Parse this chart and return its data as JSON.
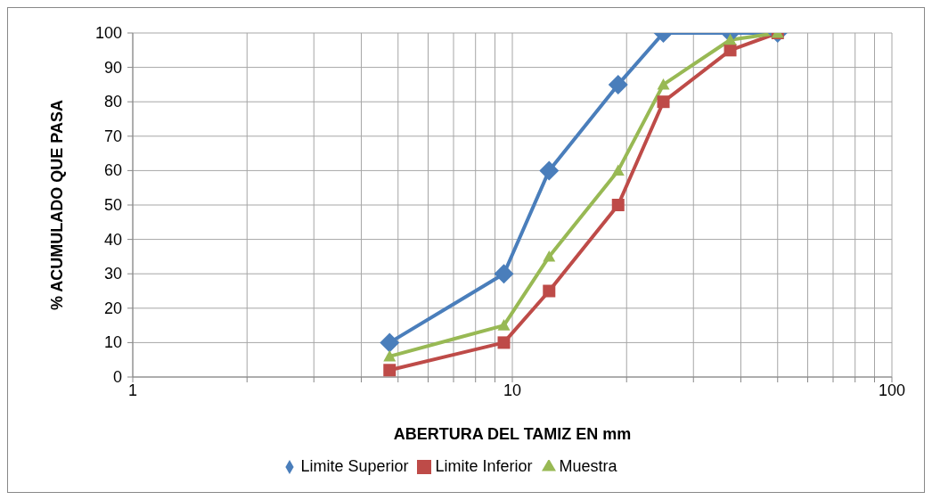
{
  "chart_data": {
    "type": "line",
    "xlabel": "ABERTURA DEL TAMIZ EN mm",
    "ylabel": "% ACUMULADO QUE PASA",
    "x": [
      4.75,
      9.5,
      12.5,
      19,
      25,
      37.5,
      50
    ],
    "series": [
      {
        "name": "Limite Superior",
        "color": "#4a7ebb",
        "marker": "diamond",
        "values": [
          10,
          30,
          60,
          85,
          100,
          100,
          100
        ]
      },
      {
        "name": "Limite Inferior",
        "color": "#be4b48",
        "marker": "square",
        "values": [
          2,
          10,
          25,
          50,
          80,
          95,
          100
        ]
      },
      {
        "name": "Muestra",
        "color": "#98b954",
        "marker": "triangle",
        "values": [
          6,
          15,
          35,
          60,
          85,
          98,
          100
        ]
      }
    ],
    "log": "x",
    "xlim": [
      1,
      100
    ],
    "xticks": [
      1,
      {
        "value": 2,
        "label": null
      },
      {
        "value": 3,
        "label": null
      },
      {
        "value": 4,
        "label": null
      },
      {
        "value": 5,
        "label": null
      },
      {
        "value": 6,
        "label": null
      },
      {
        "value": 7,
        "label": null
      },
      {
        "value": 8,
        "label": null
      },
      {
        "value": 9,
        "label": null
      },
      10,
      {
        "value": 20,
        "label": null
      },
      {
        "value": 30,
        "label": null
      },
      {
        "value": 40,
        "label": null
      },
      {
        "value": 50,
        "label": null
      },
      {
        "value": 60,
        "label": null
      },
      {
        "value": 70,
        "label": null
      },
      {
        "value": 80,
        "label": null
      },
      {
        "value": 90,
        "label": null
      },
      100
    ],
    "ylim": [
      0,
      100
    ],
    "yticks": [
      0,
      10,
      20,
      30,
      40,
      50,
      60,
      70,
      80,
      90,
      100
    ],
    "grid": true,
    "legend": "bottom",
    "line_style": "solid"
  }
}
